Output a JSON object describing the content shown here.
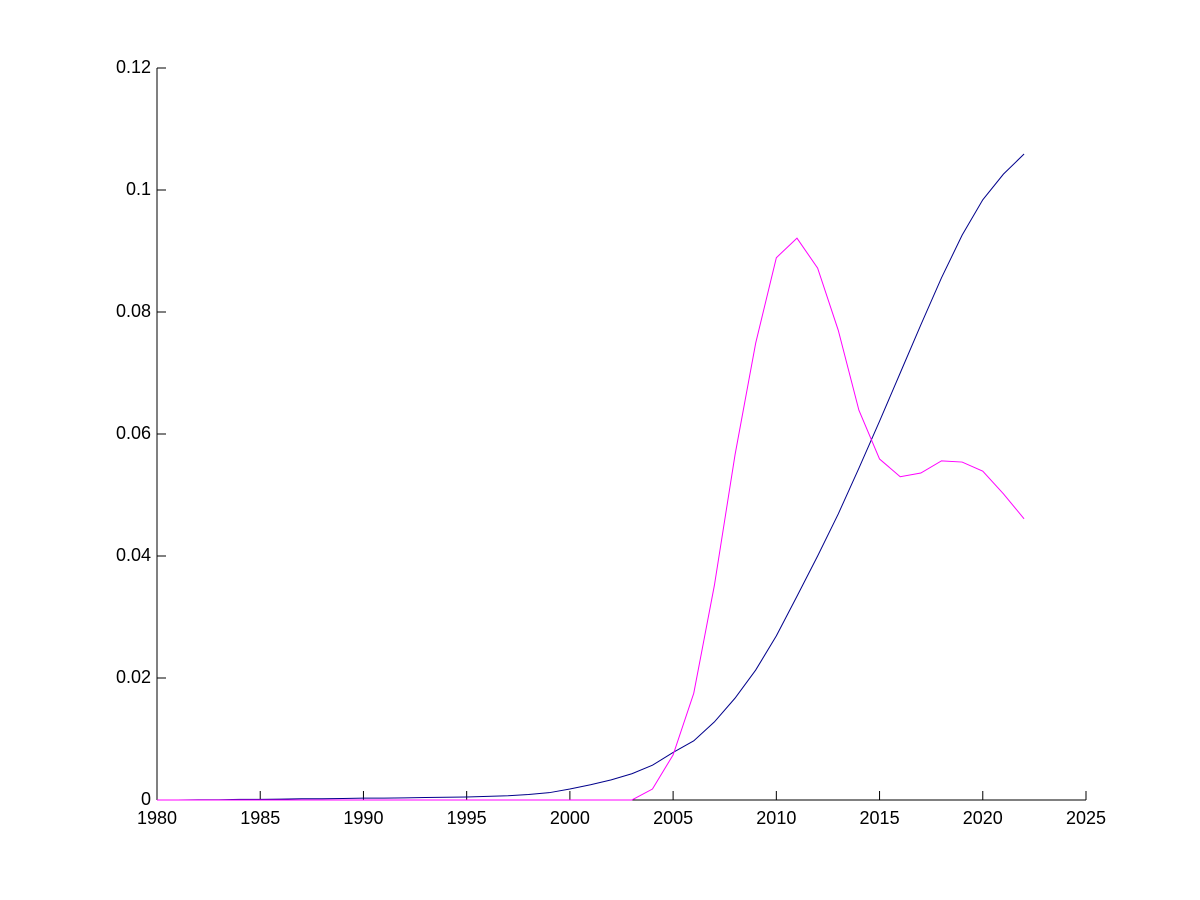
{
  "chart_data": {
    "type": "line",
    "x": [
      1980,
      1981,
      1982,
      1983,
      1984,
      1985,
      1986,
      1987,
      1988,
      1989,
      1990,
      1991,
      1992,
      1993,
      1994,
      1995,
      1996,
      1997,
      1998,
      1999,
      2000,
      2001,
      2002,
      2003,
      2004,
      2005,
      2006,
      2007,
      2008,
      2009,
      2010,
      2011,
      2012,
      2013,
      2014,
      2015,
      2016,
      2017,
      2018,
      2019,
      2020,
      2021,
      2022
    ],
    "series": [
      {
        "color": "#00008b",
        "values": [
          0,
          0,
          5e-05,
          5e-05,
          0.0001,
          0.0001,
          0.00015,
          0.0002,
          0.0002,
          0.00025,
          0.0003,
          0.0003,
          0.00035,
          0.0004,
          0.00045,
          0.0005,
          0.0006,
          0.0007,
          0.0009,
          0.0012,
          0.0018,
          0.0025,
          0.0033,
          0.0043,
          0.0057,
          0.0078,
          0.0097,
          0.0128,
          0.0167,
          0.0213,
          0.0269,
          0.0334,
          0.04,
          0.0469,
          0.0544,
          0.0621,
          0.07,
          0.0779,
          0.0856,
          0.0926,
          0.0984,
          0.1026,
          0.1059
        ]
      },
      {
        "color": "#ff00ff",
        "values": [
          0,
          0,
          0,
          0,
          0,
          0,
          0,
          0,
          0,
          0,
          0,
          0,
          0,
          0,
          0,
          0,
          0,
          0,
          0,
          0,
          0,
          0,
          0,
          0,
          0.0018,
          0.0074,
          0.0175,
          0.0352,
          0.0566,
          0.0749,
          0.0889,
          0.0921,
          0.0872,
          0.077,
          0.0639,
          0.0559,
          0.053,
          0.0536,
          0.0556,
          0.0554,
          0.0539,
          0.0502,
          0.0461
        ]
      }
    ],
    "xlim": [
      1980,
      2025
    ],
    "xticks": [
      1980,
      1985,
      1990,
      1995,
      2000,
      2005,
      2010,
      2015,
      2020,
      2025
    ],
    "ylim": [
      0,
      0.12
    ],
    "yticks": [
      0,
      0.02,
      0.04,
      0.06,
      0.08,
      0.1,
      0.12
    ]
  }
}
